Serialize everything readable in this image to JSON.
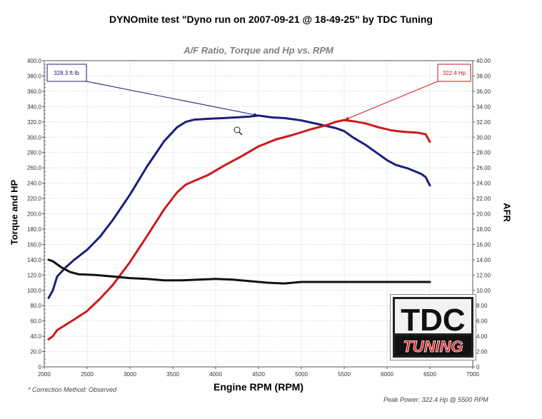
{
  "header": {
    "title": "DYNOmite test \"Dyno run on 2007-09-21 @ 18-49-25\" by TDC Tuning",
    "footnote": "* Correction Method: Observed",
    "peak_power": "Peak Power: 322.4 Hp @ 5500 RPM"
  },
  "logo": {
    "line1": "TDC",
    "line2": "TUNING"
  },
  "colors": {
    "torque": "#1b1f7a",
    "hp": "#cc1a1a",
    "afr": "#111111",
    "grid": "#c8c8c8"
  },
  "chart_data": {
    "type": "line",
    "title": "A/F Ratio, Torque and Hp vs. RPM",
    "xlabel": "Engine RPM (RPM)",
    "ylabel": "Torque and HP",
    "ylabel_right": "AFR",
    "xlim": [
      2000,
      7000
    ],
    "ylim": [
      0,
      400
    ],
    "ylim_right": [
      0,
      40
    ],
    "x_ticks": [
      2000,
      2500,
      3000,
      3500,
      4000,
      4500,
      5000,
      5500,
      6000,
      6500,
      7000
    ],
    "y_ticks": [
      "0",
      "20.0",
      "40.0",
      "60.0",
      "80.0",
      "100.0",
      "120.0",
      "140.0",
      "160.0",
      "180.0",
      "200.0",
      "220.0",
      "240.0",
      "260.0",
      "280.0",
      "300.0",
      "320.0",
      "340.0",
      "360.0",
      "380.0",
      "400.0"
    ],
    "y_ticks_right": [
      "0",
      "2.00",
      "4.00",
      "6.00",
      "8.00",
      "10.00",
      "12.00",
      "14.00",
      "16.00",
      "18.00",
      "20.00",
      "22.00",
      "24.00",
      "26.00",
      "28.00",
      "30.00",
      "32.00",
      "34.00",
      "36.00",
      "38.00",
      "40.00"
    ],
    "grid": true,
    "series": [
      {
        "axis": "left",
        "color": "#1b1f7a",
        "x": [
          2050,
          2100,
          2150,
          2250,
          2350,
          2500,
          2650,
          2800,
          3000,
          3200,
          3400,
          3550,
          3650,
          3750,
          3900,
          4100,
          4250,
          4400,
          4500,
          4650,
          4800,
          5000,
          5200,
          5400,
          5500,
          5600,
          5750,
          5900,
          6000,
          6100,
          6250,
          6400,
          6450,
          6500
        ],
        "y": [
          90,
          100,
          118,
          130,
          140,
          153,
          170,
          192,
          225,
          262,
          295,
          313,
          320,
          323,
          324,
          325,
          326,
          327,
          328.3,
          326,
          325,
          322,
          317,
          312,
          308,
          300,
          290,
          278,
          270,
          264,
          259,
          252,
          248,
          237
        ]
      },
      {
        "axis": "left",
        "color": "#cc1a1a",
        "x": [
          2050,
          2100,
          2150,
          2250,
          2350,
          2500,
          2650,
          2800,
          3000,
          3200,
          3400,
          3550,
          3650,
          3750,
          3900,
          4100,
          4300,
          4500,
          4700,
          4900,
          5100,
          5300,
          5400,
          5500,
          5600,
          5750,
          5900,
          6050,
          6200,
          6350,
          6450,
          6500
        ],
        "y": [
          36,
          40,
          48,
          55,
          62,
          73,
          89,
          107,
          137,
          171,
          206,
          228,
          238,
          243,
          250,
          263,
          275,
          288,
          297,
          303,
          310,
          316,
          320,
          322.4,
          321,
          318,
          313,
          309,
          307,
          306,
          304,
          294
        ]
      },
      {
        "axis": "right",
        "color": "#111111",
        "x": [
          2050,
          2100,
          2200,
          2300,
          2400,
          2600,
          2800,
          3000,
          3200,
          3400,
          3600,
          3800,
          4000,
          4200,
          4400,
          4600,
          4800,
          5000,
          5200,
          5400,
          5600,
          5800,
          6000,
          6200,
          6400,
          6500
        ],
        "y": [
          14.0,
          13.8,
          13.0,
          12.4,
          12.1,
          12.0,
          11.8,
          11.6,
          11.5,
          11.3,
          11.3,
          11.4,
          11.5,
          11.4,
          11.2,
          11.0,
          10.9,
          11.1,
          11.1,
          11.1,
          11.1,
          11.1,
          11.1,
          11.1,
          11.1,
          11.1
        ]
      }
    ],
    "annotations": [
      {
        "label": "328.3 ft-lb",
        "x": 4500,
        "y": 328.3,
        "color": "#1b1f7a"
      },
      {
        "label": "322.4 Hp",
        "x": 5500,
        "y": 322.4,
        "color": "#cc1a1a"
      }
    ]
  }
}
